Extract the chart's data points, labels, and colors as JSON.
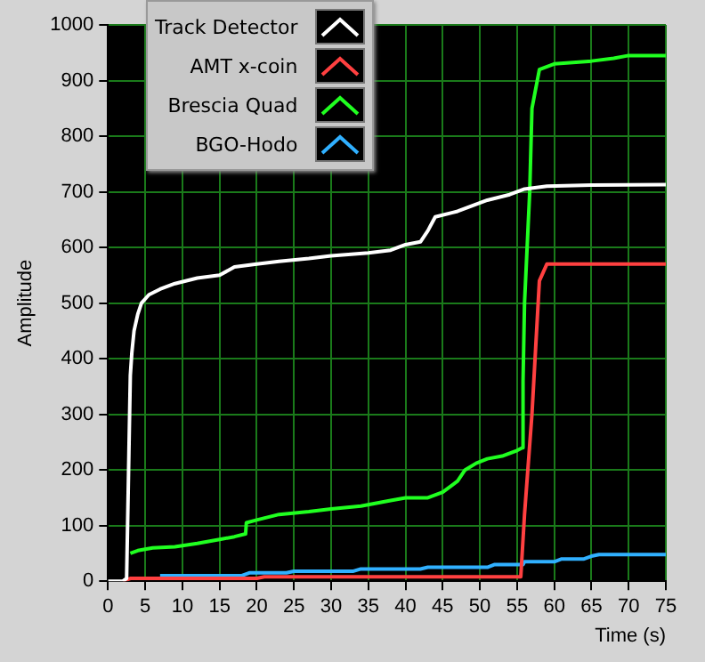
{
  "chart_data": {
    "type": "line",
    "xlabel": "Time (s)",
    "ylabel": "Amplitude",
    "xlim": [
      0,
      75
    ],
    "xticks": [
      0,
      5,
      10,
      15,
      20,
      25,
      30,
      35,
      40,
      45,
      50,
      55,
      60,
      65,
      70,
      75
    ],
    "ylim": [
      0,
      1000
    ],
    "yticks": [
      0,
      100,
      200,
      300,
      400,
      500,
      600,
      700,
      800,
      900,
      1000
    ],
    "grid": true,
    "legend": "top left",
    "marker": "none",
    "line_style": "solid",
    "series": [
      {
        "name": "Track Detector",
        "color": "#ffffff",
        "x": [
          0,
          2,
          2.5,
          3,
          3.2,
          3.5,
          4,
          4.5,
          5.5,
          7,
          9,
          12,
          15,
          17,
          20,
          23,
          27,
          30,
          35,
          38,
          40,
          42,
          43,
          44,
          47,
          49,
          51,
          54,
          56,
          59,
          65,
          75
        ],
        "values": [
          0,
          0,
          5,
          370,
          410,
          450,
          480,
          500,
          515,
          525,
          535,
          545,
          550,
          565,
          570,
          575,
          580,
          585,
          590,
          595,
          605,
          610,
          630,
          655,
          665,
          675,
          685,
          695,
          705,
          710,
          712,
          713
        ]
      },
      {
        "name": "AMT x-coin",
        "color": "#ff4040",
        "x": [
          2,
          3,
          20,
          21,
          55.5,
          56,
          57,
          57.5,
          58,
          59,
          75
        ],
        "values": [
          0,
          5,
          5,
          8,
          8,
          120,
          300,
          420,
          540,
          570,
          570
        ]
      },
      {
        "name": "Brescia Quad",
        "color": "#20ff20",
        "x": [
          3,
          4,
          6,
          9,
          12,
          15,
          17,
          18.5,
          18.6,
          20,
          23,
          27,
          30,
          34,
          38,
          40,
          43,
          45,
          47,
          48,
          49.5,
          51,
          53,
          55,
          55.7,
          55.8,
          56,
          56.7,
          57,
          58,
          60,
          65,
          68,
          70,
          75
        ],
        "values": [
          50,
          55,
          60,
          62,
          68,
          75,
          80,
          85,
          105,
          110,
          120,
          125,
          130,
          135,
          145,
          150,
          150,
          160,
          180,
          200,
          212,
          220,
          225,
          235,
          240,
          360,
          500,
          700,
          850,
          920,
          930,
          935,
          940,
          945,
          945
        ]
      },
      {
        "name": "BGO-Hodo",
        "color": "#30b0ff",
        "x": [
          7,
          18,
          19,
          24,
          25,
          33,
          34,
          42,
          43,
          51,
          52,
          55.8,
          56,
          60,
          61,
          64,
          65,
          66,
          75
        ],
        "values": [
          10,
          10,
          15,
          15,
          18,
          18,
          22,
          22,
          25,
          25,
          30,
          30,
          35,
          35,
          40,
          40,
          45,
          48,
          48
        ]
      }
    ]
  }
}
